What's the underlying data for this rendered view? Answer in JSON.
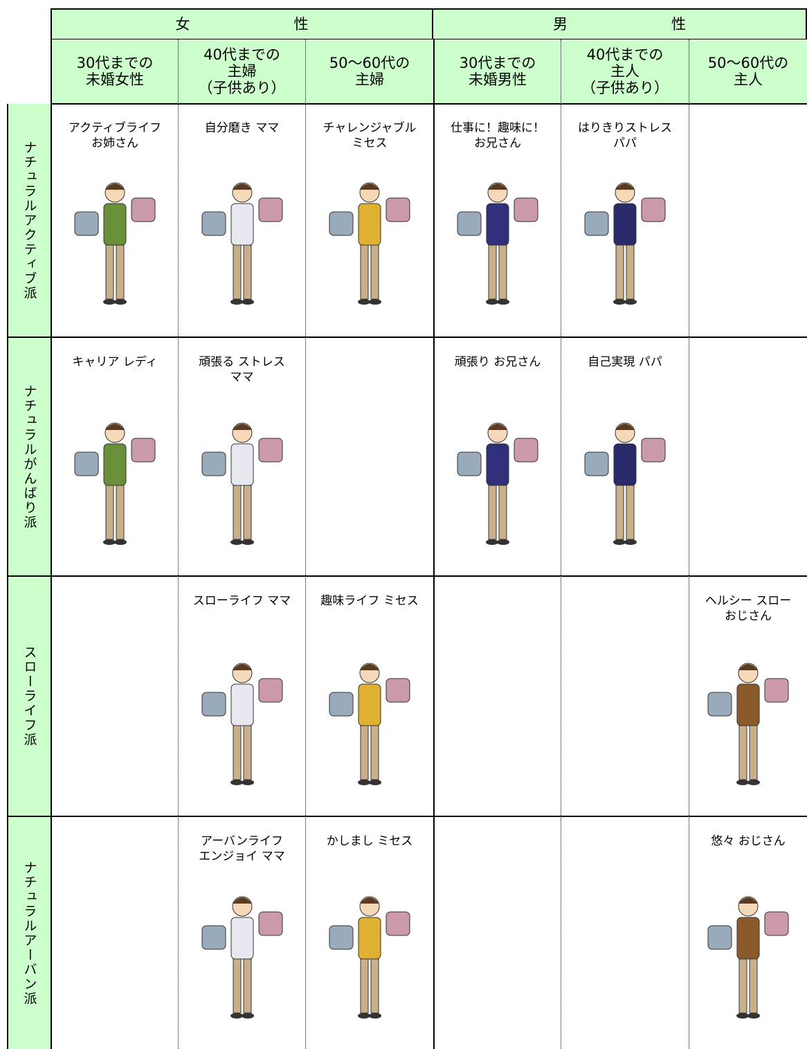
{
  "header": {
    "female": "女性",
    "male": "男性"
  },
  "columns": [
    [
      "30代までの",
      "未婚女性"
    ],
    [
      "40代までの",
      "主婦",
      "（子供あり）"
    ],
    [
      "50～60代の",
      "主婦"
    ],
    [
      "30代までの",
      "未婚男性"
    ],
    [
      "40代までの",
      "主人",
      "（子供あり）"
    ],
    [
      "50～60代の",
      "主人"
    ]
  ],
  "rows": [
    {
      "label": [
        "ナチュラル",
        "アクティブ派"
      ],
      "cells": [
        [
          "アクティブライフ",
          "お姉さん"
        ],
        [
          "自分磨き ママ"
        ],
        [
          "チャレンジャブル",
          "ミセス"
        ],
        [
          "仕事に！趣味に！",
          "お兄さん"
        ],
        [
          "はりきりストレス",
          "パパ"
        ],
        null
      ]
    },
    {
      "label": [
        "ナチュラル",
        "がんばり派"
      ],
      "cells": [
        [
          "キャリア レディ"
        ],
        [
          "頑張る ストレス",
          "ママ"
        ],
        null,
        [
          "頑張り お兄さん"
        ],
        [
          "自己実現 パパ"
        ],
        null
      ]
    },
    {
      "label": [
        "スローライフ派"
      ],
      "cells": [
        null,
        [
          "スローライフ ママ"
        ],
        [
          "趣味ライフ ミセス"
        ],
        null,
        null,
        [
          "ヘルシー スロー",
          "おじさん"
        ]
      ]
    },
    {
      "label": [
        "ナチュラル",
        "アーバン派"
      ],
      "cells": [
        null,
        [
          "アーバンライフ",
          "エンジョイ ママ"
        ],
        [
          "かしまし ミセス"
        ],
        null,
        null,
        [
          "悠々 おじさん"
        ]
      ]
    }
  ]
}
